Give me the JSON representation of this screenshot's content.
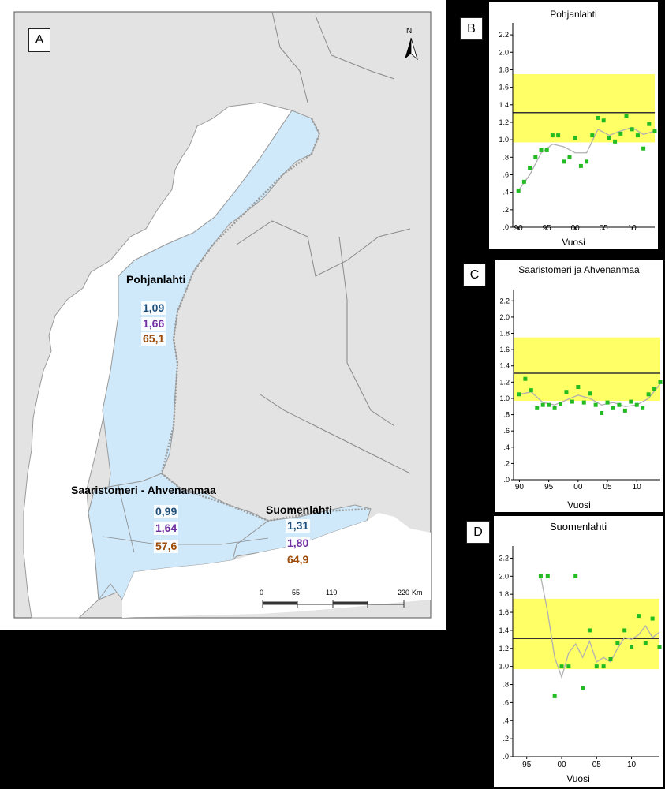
{
  "map": {
    "panel_letter": "A",
    "north_label": "N",
    "regions": [
      {
        "name": "Pohjanlahti",
        "values": [
          "1,09",
          "1,66",
          "65,1"
        ]
      },
      {
        "name": "Saaristomeri - Ahvenanmaa",
        "values": [
          "0,99",
          "1,64",
          "57,6"
        ]
      },
      {
        "name": "Suomenlahti",
        "values": [
          "1,31",
          "1,80",
          "64,9"
        ]
      }
    ],
    "scale": {
      "ticks": [
        "0",
        "55",
        "110",
        "220"
      ],
      "unit": "Km"
    },
    "colors": {
      "land": "#e3e3e3",
      "sea_area": "#cfe9fb",
      "open_sea": "#ffffff",
      "coast": "#9a9a9a"
    }
  },
  "charts": [
    {
      "letter": "B",
      "title": "Pohjanlahti"
    },
    {
      "letter": "C",
      "title": "Saaristomeri ja Ahvenanmaa"
    },
    {
      "letter": "D",
      "title": "Suomenlahti"
    }
  ],
  "chart_data": [
    {
      "type": "scatter",
      "title": "Pohjanlahti",
      "xlabel": "Vuosi",
      "xticks": [
        "90",
        "95",
        "00",
        "05",
        "10"
      ],
      "xlim": [
        1989,
        2014
      ],
      "yticks": [
        ".0",
        ".2",
        ".4",
        ".6",
        ".8",
        "1.0",
        "1.2",
        "1.4",
        "1.6",
        "1.8",
        "2.0",
        "2.2"
      ],
      "ylim": [
        0,
        2.3
      ],
      "band": [
        0.97,
        1.75
      ],
      "reference": 1.31,
      "points": [
        [
          1990,
          0.42
        ],
        [
          1991,
          0.52
        ],
        [
          1992,
          0.68
        ],
        [
          1993,
          0.8
        ],
        [
          1994,
          0.88
        ],
        [
          1995,
          0.88
        ],
        [
          1996,
          1.05
        ],
        [
          1997,
          1.05
        ],
        [
          1998,
          0.75
        ],
        [
          1999,
          0.8
        ],
        [
          2000,
          1.02
        ],
        [
          2001,
          0.7
        ],
        [
          2002,
          0.75
        ],
        [
          2003,
          1.05
        ],
        [
          2004,
          1.25
        ],
        [
          2005,
          1.22
        ],
        [
          2006,
          1.02
        ],
        [
          2007,
          0.98
        ],
        [
          2008,
          1.07
        ],
        [
          2009,
          1.27
        ],
        [
          2010,
          1.12
        ],
        [
          2011,
          1.05
        ],
        [
          2012,
          0.9
        ],
        [
          2013,
          1.18
        ],
        [
          2014,
          1.1
        ]
      ],
      "trend": [
        [
          1990,
          0.42
        ],
        [
          1992,
          0.6
        ],
        [
          1994,
          0.85
        ],
        [
          1996,
          0.95
        ],
        [
          1998,
          0.92
        ],
        [
          2000,
          0.85
        ],
        [
          2002,
          0.85
        ],
        [
          2004,
          1.12
        ],
        [
          2006,
          1.05
        ],
        [
          2008,
          1.1
        ],
        [
          2010,
          1.14
        ],
        [
          2012,
          1.06
        ],
        [
          2014,
          1.1
        ]
      ],
      "colors": {
        "points": "#22bb22",
        "band": "#ffff66",
        "reference": "#333333",
        "trend": "#b0b0b0"
      }
    },
    {
      "type": "scatter",
      "title": "Saaristomeri ja Ahvenanmaa",
      "xlabel": "Vuosi",
      "xticks": [
        "90",
        "95",
        "00",
        "05",
        "10"
      ],
      "xlim": [
        1989,
        2014
      ],
      "yticks": [
        ".0",
        ".2",
        ".4",
        ".6",
        ".8",
        "1.0",
        "1.2",
        "1.4",
        "1.6",
        "1.8",
        "2.0",
        "2.2"
      ],
      "ylim": [
        0,
        2.3
      ],
      "band": [
        0.97,
        1.75
      ],
      "reference": 1.31,
      "points": [
        [
          1990,
          1.05
        ],
        [
          1991,
          1.24
        ],
        [
          1992,
          1.1
        ],
        [
          1993,
          0.88
        ],
        [
          1994,
          0.92
        ],
        [
          1995,
          0.92
        ],
        [
          1996,
          0.88
        ],
        [
          1997,
          0.93
        ],
        [
          1998,
          1.08
        ],
        [
          1999,
          0.96
        ],
        [
          2000,
          1.14
        ],
        [
          2001,
          0.95
        ],
        [
          2002,
          1.06
        ],
        [
          2003,
          0.92
        ],
        [
          2004,
          0.82
        ],
        [
          2005,
          0.95
        ],
        [
          2006,
          0.88
        ],
        [
          2007,
          0.92
        ],
        [
          2008,
          0.85
        ],
        [
          2009,
          0.96
        ],
        [
          2010,
          0.92
        ],
        [
          2011,
          0.88
        ],
        [
          2012,
          1.05
        ],
        [
          2013,
          1.12
        ],
        [
          2014,
          1.2
        ]
      ],
      "trend": [
        [
          1990,
          1.05
        ],
        [
          1992,
          1.08
        ],
        [
          1994,
          0.95
        ],
        [
          1996,
          0.92
        ],
        [
          1998,
          0.98
        ],
        [
          2000,
          1.04
        ],
        [
          2002,
          1.0
        ],
        [
          2004,
          0.92
        ],
        [
          2006,
          0.95
        ],
        [
          2008,
          0.9
        ],
        [
          2010,
          0.92
        ],
        [
          2012,
          1.0
        ],
        [
          2014,
          1.18
        ]
      ],
      "colors": {
        "points": "#22bb22",
        "band": "#ffff66",
        "reference": "#333333",
        "trend": "#b0b0b0"
      }
    },
    {
      "type": "scatter",
      "title": "Suomenlahti",
      "xlabel": "Vuosi",
      "xticks": [
        "95",
        "00",
        "05",
        "10"
      ],
      "xlim": [
        1993,
        2014
      ],
      "yticks": [
        ".0",
        ".2",
        ".4",
        ".6",
        ".8",
        "1.0",
        "1.2",
        "1.4",
        "1.6",
        "1.8",
        "2.0",
        "2.2"
      ],
      "ylim": [
        0,
        2.3
      ],
      "band": [
        0.97,
        1.75
      ],
      "reference": 1.31,
      "points": [
        [
          1997,
          2.0
        ],
        [
          1998,
          2.0
        ],
        [
          1999,
          0.67
        ],
        [
          2000,
          1.0
        ],
        [
          2001,
          1.0
        ],
        [
          2002,
          2.0
        ],
        [
          2003,
          0.76
        ],
        [
          2004,
          1.4
        ],
        [
          2005,
          1.0
        ],
        [
          2006,
          1.0
        ],
        [
          2007,
          1.08
        ],
        [
          2008,
          1.26
        ],
        [
          2009,
          1.4
        ],
        [
          2010,
          1.22
        ],
        [
          2011,
          1.56
        ],
        [
          2012,
          1.26
        ],
        [
          2013,
          1.53
        ],
        [
          2014,
          1.22
        ]
      ],
      "trend": [
        [
          1997,
          2.0
        ],
        [
          1998,
          1.6
        ],
        [
          1999,
          1.1
        ],
        [
          2000,
          0.88
        ],
        [
          2001,
          1.15
        ],
        [
          2002,
          1.25
        ],
        [
          2003,
          1.1
        ],
        [
          2004,
          1.28
        ],
        [
          2005,
          1.05
        ],
        [
          2006,
          1.1
        ],
        [
          2007,
          1.05
        ],
        [
          2008,
          1.2
        ],
        [
          2009,
          1.32
        ],
        [
          2010,
          1.3
        ],
        [
          2011,
          1.35
        ],
        [
          2012,
          1.45
        ],
        [
          2013,
          1.32
        ],
        [
          2014,
          1.38
        ]
      ],
      "colors": {
        "points": "#22bb22",
        "band": "#ffff66",
        "reference": "#333333",
        "trend": "#b0b0b0"
      }
    }
  ]
}
